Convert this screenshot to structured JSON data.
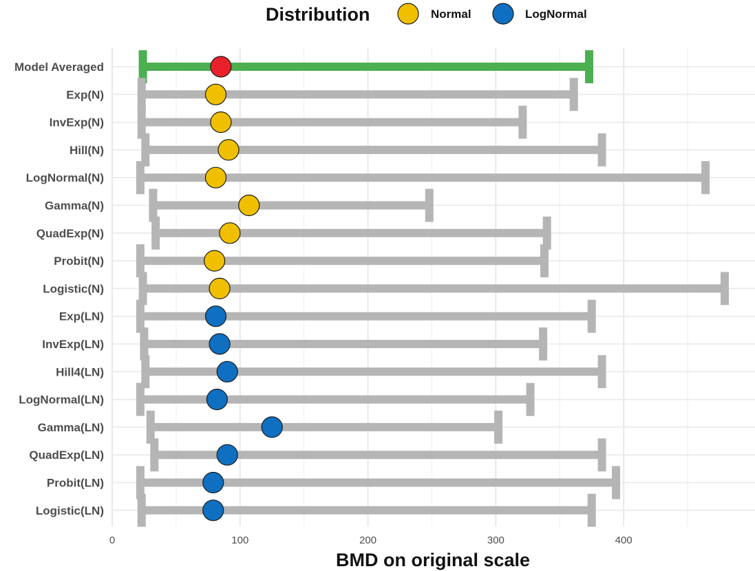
{
  "chart_data": {
    "type": "error-bar dot plot",
    "xlabel": "BMD on original scale",
    "xlim": [
      0,
      510
    ],
    "xticks": [
      0,
      100,
      200,
      300,
      400
    ],
    "grid": true,
    "legend": {
      "title": "Distribution",
      "placement": "top",
      "entries": [
        {
          "name": "Normal",
          "color": "#f0c000"
        },
        {
          "name": "LogNormal",
          "color": "#0f6fc0"
        }
      ]
    },
    "colors": {
      "model_averaged_bar": "#4caf50",
      "model_averaged_point": "#e8212a",
      "model_bar": "#b5b5b5"
    },
    "rows": [
      {
        "label": "Model Averaged",
        "lower": 24,
        "bmd": 85,
        "upper": 373,
        "dist": "Averaged"
      },
      {
        "label": "Exp(N)",
        "lower": 23,
        "bmd": 81,
        "upper": 361,
        "dist": "Normal"
      },
      {
        "label": "InvExp(N)",
        "lower": 23,
        "bmd": 85,
        "upper": 321,
        "dist": "Normal"
      },
      {
        "label": "Hill(N)",
        "lower": 26,
        "bmd": 91,
        "upper": 383,
        "dist": "Normal"
      },
      {
        "label": "LogNormal(N)",
        "lower": 22,
        "bmd": 81,
        "upper": 464,
        "dist": "Normal"
      },
      {
        "label": "Gamma(N)",
        "lower": 32,
        "bmd": 107,
        "upper": 248,
        "dist": "Normal"
      },
      {
        "label": "QuadExp(N)",
        "lower": 34,
        "bmd": 92,
        "upper": 340,
        "dist": "Normal"
      },
      {
        "label": "Probit(N)",
        "lower": 22,
        "bmd": 80,
        "upper": 338,
        "dist": "Normal"
      },
      {
        "label": "Logistic(N)",
        "lower": 24,
        "bmd": 84,
        "upper": 479,
        "dist": "Normal"
      },
      {
        "label": "Exp(LN)",
        "lower": 22,
        "bmd": 81,
        "upper": 375,
        "dist": "LogNormal"
      },
      {
        "label": "InvExp(LN)",
        "lower": 25,
        "bmd": 84,
        "upper": 337,
        "dist": "LogNormal"
      },
      {
        "label": "Hill4(LN)",
        "lower": 26,
        "bmd": 90,
        "upper": 383,
        "dist": "LogNormal"
      },
      {
        "label": "LogNormal(LN)",
        "lower": 22,
        "bmd": 82,
        "upper": 327,
        "dist": "LogNormal"
      },
      {
        "label": "Gamma(LN)",
        "lower": 30,
        "bmd": 125,
        "upper": 302,
        "dist": "LogNormal"
      },
      {
        "label": "QuadExp(LN)",
        "lower": 33,
        "bmd": 90,
        "upper": 383,
        "dist": "LogNormal"
      },
      {
        "label": "Probit(LN)",
        "lower": 22,
        "bmd": 79,
        "upper": 394,
        "dist": "LogNormal"
      },
      {
        "label": "Logistic(LN)",
        "lower": 23,
        "bmd": 79,
        "upper": 375,
        "dist": "LogNormal"
      }
    ]
  }
}
